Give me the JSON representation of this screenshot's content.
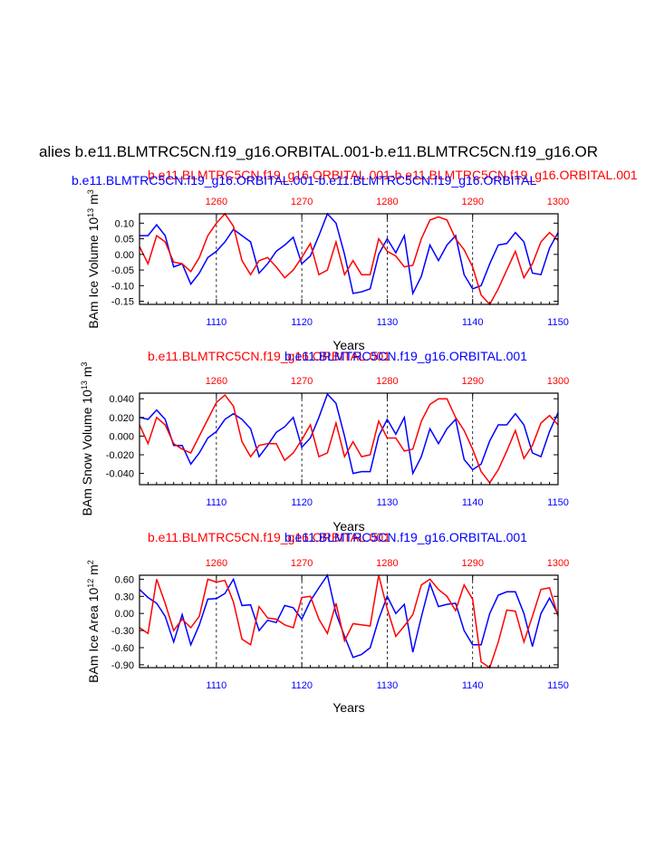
{
  "figure": {
    "title": "alies b.e11.BLMTRC5CN.f19_g16.ORBITAL.001-b.e11.BLMTRC5CN.f19_g16.OR",
    "colors": {
      "series_a": "#0000ff",
      "series_b": "#ff0000",
      "axis": "#000000"
    }
  },
  "chart_data": [
    {
      "type": "line",
      "case_label_blue": "b.e11.BLMTRC5CN.f19_g16.ORBITAL.001-b.e11.BLMTRC5CN.f19_g16.ORBITAL",
      "case_label_red": "b.e11.BLMTRC5CN.f19_g16.ORBITAL.001-b.e11.BLMTRC5CN.f19_g16.ORBITAL.001",
      "ylabel": "BAm Ice Volume 10",
      "ylabel_exp": "13",
      "ylabel_unit": "m",
      "ylabel_unit_exp": "3",
      "xlabel": "Years",
      "bottom_xlim": [
        1101,
        1150
      ],
      "top_xlim": [
        1251,
        1300
      ],
      "bottom_ticks": [
        "1110",
        "1120",
        "1130",
        "1140",
        "1150"
      ],
      "top_ticks": [
        "1260",
        "1270",
        "1280",
        "1290",
        "1300"
      ],
      "ylim": [
        -0.16,
        0.13
      ],
      "yticks": [
        0.1,
        0.05,
        0.0,
        -0.05,
        -0.1,
        -0.15
      ],
      "ytick_labels": [
        "0.10",
        "0.05",
        "0.00",
        "-0.05",
        "-0.10",
        "-0.15"
      ],
      "grid_x": [
        1110,
        1120,
        1130,
        1140
      ],
      "series": [
        {
          "color": "#0000ff",
          "x": [
            1101,
            1102,
            1103,
            1104,
            1105,
            1106,
            1107,
            1108,
            1109,
            1110,
            1111,
            1112,
            1113,
            1114,
            1115,
            1116,
            1117,
            1118,
            1119,
            1120,
            1121,
            1122,
            1123,
            1124,
            1125,
            1126,
            1127,
            1128,
            1129,
            1130,
            1131,
            1132,
            1133,
            1134,
            1135,
            1136,
            1137,
            1138,
            1139,
            1140,
            1141,
            1142,
            1143,
            1144,
            1145,
            1146,
            1147,
            1148,
            1149,
            1150
          ],
          "values": [
            0.06,
            0.06,
            0.095,
            0.06,
            -0.04,
            -0.03,
            -0.095,
            -0.06,
            -0.01,
            0.01,
            0.04,
            0.08,
            0.06,
            0.04,
            -0.06,
            -0.03,
            0.01,
            0.03,
            0.055,
            -0.03,
            -0.005,
            0.06,
            0.13,
            0.1,
            0.0,
            -0.125,
            -0.12,
            -0.11,
            0.0,
            0.05,
            0.005,
            0.06,
            -0.125,
            -0.07,
            0.03,
            -0.02,
            0.03,
            0.06,
            -0.065,
            -0.11,
            -0.1,
            -0.03,
            0.03,
            0.035,
            0.07,
            0.04,
            -0.06,
            -0.065,
            0.02,
            0.07
          ]
        },
        {
          "color": "#ff0000",
          "x": [
            1101,
            1102,
            1103,
            1104,
            1105,
            1106,
            1107,
            1108,
            1109,
            1110,
            1111,
            1112,
            1113,
            1114,
            1115,
            1116,
            1117,
            1118,
            1119,
            1120,
            1121,
            1122,
            1123,
            1124,
            1125,
            1126,
            1127,
            1128,
            1129,
            1130,
            1131,
            1132,
            1133,
            1134,
            1135,
            1136,
            1137,
            1138,
            1139,
            1140,
            1141,
            1142,
            1143,
            1144,
            1145,
            1146,
            1147,
            1148,
            1149,
            1150
          ],
          "values": [
            0.025,
            -0.03,
            0.06,
            0.04,
            -0.025,
            -0.03,
            -0.055,
            -0.01,
            0.06,
            0.1,
            0.13,
            0.09,
            -0.02,
            -0.065,
            -0.02,
            -0.01,
            -0.04,
            -0.075,
            -0.05,
            -0.01,
            0.035,
            -0.065,
            -0.05,
            0.04,
            -0.065,
            -0.02,
            -0.065,
            -0.065,
            0.05,
            0.01,
            -0.005,
            -0.04,
            -0.035,
            0.05,
            0.11,
            0.12,
            0.11,
            0.05,
            0.015,
            -0.04,
            -0.13,
            -0.165,
            -0.11,
            -0.05,
            0.01,
            -0.075,
            -0.03,
            0.04,
            0.07,
            0.045
          ]
        }
      ]
    },
    {
      "type": "line",
      "case_label_blue": "b.e11.BLMTRC5CN.f19_g16.ORBITAL.001",
      "case_label_red": "b.e11.BLMTRC5CN.f19_g16.ORBITAL.001",
      "ylabel": "BAm Snow Volume 10",
      "ylabel_exp": "13",
      "ylabel_unit": "m",
      "ylabel_unit_exp": "3",
      "xlabel": "Years",
      "bottom_xlim": [
        1101,
        1150
      ],
      "top_xlim": [
        1251,
        1300
      ],
      "bottom_ticks": [
        "1110",
        "1120",
        "1130",
        "1140",
        "1150"
      ],
      "top_ticks": [
        "1260",
        "1270",
        "1280",
        "1290",
        "1300"
      ],
      "ylim": [
        -0.052,
        0.046
      ],
      "yticks": [
        0.04,
        0.02,
        0.0,
        -0.02,
        -0.04
      ],
      "ytick_labels": [
        "0.040",
        "0.020",
        "0.000",
        "-0.020",
        "-0.040"
      ],
      "grid_x": [
        1110,
        1120,
        1130,
        1140
      ],
      "series": [
        {
          "color": "#0000ff",
          "x": [
            1101,
            1102,
            1103,
            1104,
            1105,
            1106,
            1107,
            1108,
            1109,
            1110,
            1111,
            1112,
            1113,
            1114,
            1115,
            1116,
            1117,
            1118,
            1119,
            1120,
            1121,
            1122,
            1123,
            1124,
            1125,
            1126,
            1127,
            1128,
            1129,
            1130,
            1131,
            1132,
            1133,
            1134,
            1135,
            1136,
            1137,
            1138,
            1139,
            1140,
            1141,
            1142,
            1143,
            1144,
            1145,
            1146,
            1147,
            1148,
            1149,
            1150
          ],
          "values": [
            0.02,
            0.018,
            0.028,
            0.018,
            -0.01,
            -0.01,
            -0.03,
            -0.018,
            -0.002,
            0.005,
            0.018,
            0.024,
            0.018,
            0.008,
            -0.022,
            -0.01,
            0.004,
            0.01,
            0.02,
            -0.012,
            -0.002,
            0.02,
            0.045,
            0.035,
            0.0,
            -0.04,
            -0.038,
            -0.038,
            0.0,
            0.018,
            0.002,
            0.02,
            -0.04,
            -0.022,
            0.008,
            -0.008,
            0.008,
            0.018,
            -0.025,
            -0.036,
            -0.03,
            -0.005,
            0.012,
            0.012,
            0.024,
            0.012,
            -0.018,
            -0.022,
            0.005,
            0.025
          ]
        },
        {
          "color": "#ff0000",
          "x": [
            1101,
            1102,
            1103,
            1104,
            1105,
            1106,
            1107,
            1108,
            1109,
            1110,
            1111,
            1112,
            1113,
            1114,
            1115,
            1116,
            1117,
            1118,
            1119,
            1120,
            1121,
            1122,
            1123,
            1124,
            1125,
            1126,
            1127,
            1128,
            1129,
            1130,
            1131,
            1132,
            1133,
            1134,
            1135,
            1136,
            1137,
            1138,
            1139,
            1140,
            1141,
            1142,
            1143,
            1144,
            1145,
            1146,
            1147,
            1148,
            1149,
            1150
          ],
          "values": [
            0.012,
            -0.008,
            0.02,
            0.012,
            -0.008,
            -0.014,
            -0.018,
            0.0,
            0.018,
            0.036,
            0.044,
            0.032,
            -0.006,
            -0.022,
            -0.01,
            -0.008,
            -0.008,
            -0.026,
            -0.018,
            -0.004,
            0.012,
            -0.022,
            -0.018,
            0.014,
            -0.022,
            -0.006,
            -0.022,
            -0.02,
            0.016,
            -0.002,
            -0.002,
            -0.016,
            -0.014,
            0.016,
            0.034,
            0.04,
            0.04,
            0.02,
            0.006,
            -0.014,
            -0.038,
            -0.05,
            -0.036,
            -0.016,
            0.006,
            -0.024,
            -0.01,
            0.014,
            0.022,
            0.012
          ]
        }
      ]
    },
    {
      "type": "line",
      "case_label_blue": "b.e11.BLMTRC5CN.f19_g16.ORBITAL.001",
      "case_label_red": "b.e11.BLMTRC5CN.f19_g16.ORBITAL.001",
      "ylabel": "BAm Ice Area 10",
      "ylabel_exp": "12",
      "ylabel_unit": "m",
      "ylabel_unit_exp": "2",
      "xlabel": "Years",
      "bottom_xlim": [
        1101,
        1150
      ],
      "top_xlim": [
        1251,
        1300
      ],
      "bottom_ticks": [
        "1110",
        "1120",
        "1130",
        "1140",
        "1150"
      ],
      "top_ticks": [
        "1260",
        "1270",
        "1280",
        "1290",
        "1300"
      ],
      "ylim": [
        -0.95,
        0.67
      ],
      "yticks": [
        0.6,
        0.3,
        0.0,
        -0.3,
        -0.6,
        -0.9
      ],
      "ytick_labels": [
        "0.60",
        "0.30",
        "0.00",
        "-0.30",
        "-0.60",
        "-0.90"
      ],
      "grid_x": [
        1110,
        1120,
        1130,
        1140
      ],
      "series": [
        {
          "color": "#0000ff",
          "x": [
            1101,
            1102,
            1103,
            1104,
            1105,
            1106,
            1107,
            1108,
            1109,
            1110,
            1111,
            1112,
            1113,
            1114,
            1115,
            1116,
            1117,
            1118,
            1119,
            1120,
            1121,
            1122,
            1123,
            1124,
            1125,
            1126,
            1127,
            1128,
            1129,
            1130,
            1131,
            1132,
            1133,
            1134,
            1135,
            1136,
            1137,
            1138,
            1139,
            1140,
            1141,
            1142,
            1143,
            1144,
            1145,
            1146,
            1147,
            1148,
            1149,
            1150
          ],
          "values": [
            0.42,
            0.28,
            0.18,
            -0.05,
            -0.5,
            -0.02,
            -0.55,
            -0.2,
            0.25,
            0.26,
            0.35,
            0.6,
            0.14,
            0.15,
            -0.3,
            -0.12,
            -0.16,
            0.14,
            0.1,
            -0.1,
            0.22,
            0.45,
            0.67,
            0.0,
            -0.4,
            -0.77,
            -0.72,
            -0.6,
            -0.1,
            0.3,
            0.0,
            0.16,
            -0.68,
            -0.06,
            0.52,
            0.12,
            0.16,
            0.18,
            -0.3,
            -0.55,
            -0.55,
            0.0,
            0.32,
            0.38,
            0.38,
            0.0,
            -0.58,
            0.0,
            0.27,
            -0.02
          ]
        },
        {
          "color": "#ff0000",
          "x": [
            1101,
            1102,
            1103,
            1104,
            1105,
            1106,
            1107,
            1108,
            1109,
            1110,
            1111,
            1112,
            1113,
            1114,
            1115,
            1116,
            1117,
            1118,
            1119,
            1120,
            1121,
            1122,
            1123,
            1124,
            1125,
            1126,
            1127,
            1128,
            1129,
            1130,
            1131,
            1132,
            1133,
            1134,
            1135,
            1136,
            1137,
            1138,
            1139,
            1140,
            1141,
            1142,
            1143,
            1144,
            1145,
            1146,
            1147,
            1148,
            1149,
            1150
          ],
          "values": [
            -0.25,
            -0.35,
            0.6,
            0.18,
            -0.3,
            -0.1,
            -0.25,
            -0.05,
            0.6,
            0.55,
            0.58,
            0.2,
            -0.45,
            -0.55,
            0.12,
            -0.08,
            -0.1,
            -0.2,
            -0.25,
            0.28,
            0.3,
            -0.1,
            -0.35,
            0.18,
            -0.48,
            -0.18,
            -0.2,
            -0.22,
            0.68,
            0.08,
            -0.4,
            -0.22,
            -0.02,
            0.5,
            0.6,
            0.42,
            0.3,
            0.05,
            0.5,
            0.25,
            -0.85,
            -1.1,
            -0.5,
            0.06,
            0.04,
            -0.5,
            -0.05,
            0.42,
            0.45,
            -0.05
          ]
        }
      ]
    }
  ]
}
